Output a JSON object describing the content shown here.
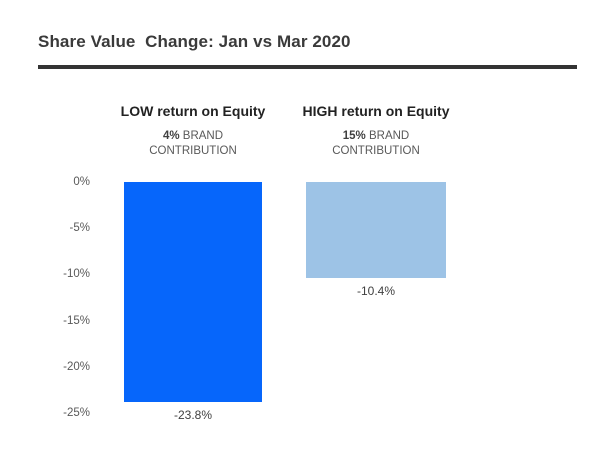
{
  "title": "Share Value  Change: Jan vs Mar 2020",
  "columns": [
    {
      "header": "LOW return on Equity",
      "brand_pct": "4%",
      "brand_word": "BRAND",
      "contribution_word": "CONTRIBUTION",
      "value_label": "-23.8%"
    },
    {
      "header": "HIGH return on Equity",
      "brand_pct": "15%",
      "brand_word": "BRAND",
      "contribution_word": "CONTRIBUTION",
      "value_label": "-10.4%"
    }
  ],
  "chart_data": {
    "type": "bar",
    "title": "Share Value Change: Jan vs Mar 2020",
    "categories": [
      "LOW return on Equity",
      "HIGH return on Equity"
    ],
    "values": [
      -23.8,
      -10.4
    ],
    "data_labels": [
      "-23.8%",
      "-10.4%"
    ],
    "annotations": [
      "4% BRAND CONTRIBUTION",
      "15% BRAND CONTRIBUTION"
    ],
    "xlabel": "",
    "ylabel": "",
    "ylim": [
      -25,
      0
    ],
    "yticks": [
      "0%",
      "-5%",
      "-10%",
      "-15%",
      "-20%",
      "-25%"
    ],
    "grid": false,
    "legend": false,
    "bar_colors": [
      "#0666FB",
      "#9DC3E6"
    ]
  },
  "colors": {
    "title_text": "#3a3a3a",
    "title_rule": "#333333",
    "axis_text": "#595959",
    "bar_low": "#0666FB",
    "bar_high": "#9DC3E6",
    "background": "#ffffff"
  }
}
